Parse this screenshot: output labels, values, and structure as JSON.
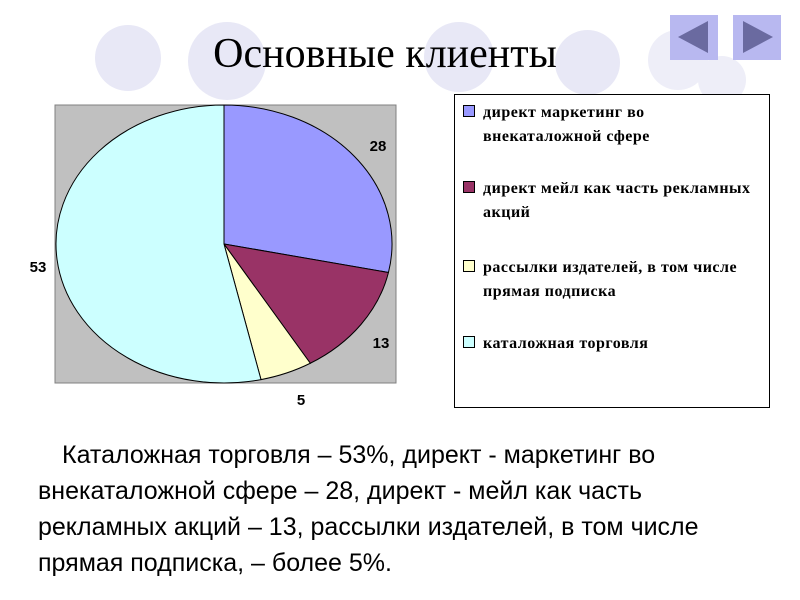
{
  "title": "Основные клиенты",
  "nav": {
    "prev_icon": "arrow-left-icon",
    "next_icon": "arrow-right-icon"
  },
  "colors": {
    "deco_circle": "#e8e8f6",
    "nav_button": "#b8b8f0",
    "nav_arrow": "#6a6aa0",
    "plot_area": "#c0c0c0"
  },
  "chart_data": {
    "type": "pie",
    "values": [
      28,
      13,
      5,
      53
    ],
    "labels": [
      "директ маркетинг во внекаталожной сфере",
      "директ мейл как часть рекламных акций",
      "рассылки издателей, в том числе прямая подписка",
      "каталожная торговля"
    ],
    "data_labels": [
      "28",
      "13",
      "5",
      "53"
    ],
    "colors": [
      "#9999ff",
      "#993366",
      "#ffffcc",
      "#ccffff"
    ],
    "legend_position": "right"
  },
  "body_text": "Каталожная торговля – 53%, директ - маркетинг во внекаталожной сфере – 28, директ - мейл как часть рекламных акций – 13, рассылки издателей, в том числе прямая подписка, – более 5%."
}
